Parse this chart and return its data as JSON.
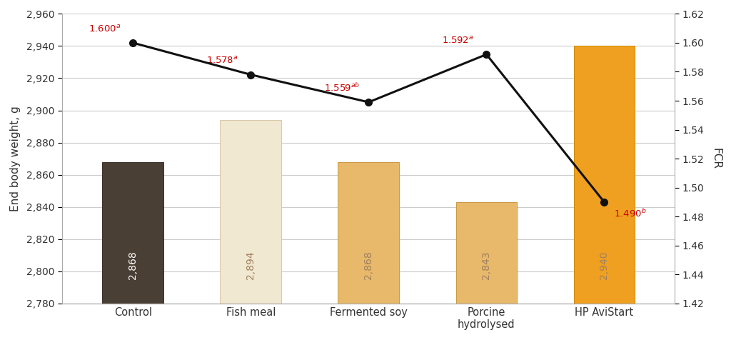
{
  "categories": [
    "Control",
    "Fish meal",
    "Fermented soy",
    "Porcine\nhydrolysed",
    "HP AviStart"
  ],
  "bar_values": [
    2868,
    2894,
    2868,
    2843,
    2940
  ],
  "bar_colors": [
    "#4a3f35",
    "#f0e8d0",
    "#e8b96a",
    "#e8b96a",
    "#f0a020"
  ],
  "bar_edge_colors": [
    "#3a3028",
    "#d8c8a8",
    "#c89840",
    "#c89840",
    "#cc8800"
  ],
  "fcr_values": [
    1.6,
    1.578,
    1.559,
    1.592,
    1.49
  ],
  "bar_label_values": [
    "2,868",
    "2,894",
    "2,868",
    "2,843",
    "2,940"
  ],
  "ylim_left": [
    2780,
    2960
  ],
  "ylim_right": [
    1.42,
    1.62
  ],
  "yticks_left": [
    2780,
    2800,
    2820,
    2840,
    2860,
    2880,
    2900,
    2920,
    2940,
    2960
  ],
  "yticks_right": [
    1.42,
    1.44,
    1.46,
    1.48,
    1.5,
    1.52,
    1.54,
    1.56,
    1.58,
    1.6,
    1.62
  ],
  "ylabel_left": "End body weight, g",
  "ylabel_right": "FCR",
  "background_color": "#ffffff",
  "grid_color": "#cccccc",
  "line_color": "#111111",
  "marker_color": "#111111",
  "tick_label_color": "#333333",
  "axis_label_color": "#333333"
}
